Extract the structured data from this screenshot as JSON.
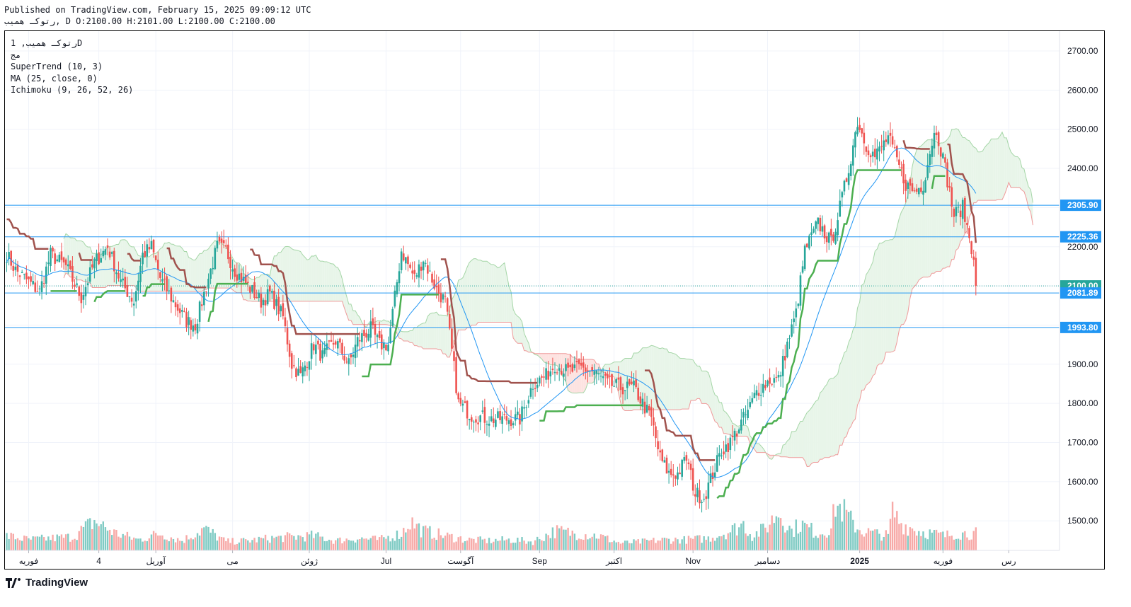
{
  "header": {
    "published": "Published on TradingView.com, February 15, 2025 09:09:12 UTC",
    "ohlc": "رتوکـ همیب, D O:2100.00 H:2101.00 L:2100.00 C:2100.00"
  },
  "legend": {
    "symbol": "رتوکـ همیب, 1D",
    "sub": "مج",
    "supertrend": "SuperTrend (10, 3)",
    "ma": "MA (25, close, 0)",
    "ichimoku": "Ichimoku (9, 26, 52, 26)"
  },
  "footer": {
    "brand": "TradingView"
  },
  "colors": {
    "up": "#26a69a",
    "down": "#ef5350",
    "supertrend_up": "#4caf50",
    "supertrend_down": "#a0524d",
    "ma": "#2196f3",
    "hline": "#2196f3",
    "cloud_bull": "#e8f5e9",
    "cloud_bear": "#fde3e1"
  },
  "chart_data": {
    "type": "candlestick",
    "y_axis": {
      "ticks": [
        2700,
        2600,
        2500,
        2400,
        2300,
        2200,
        2100,
        2000,
        1900,
        1800,
        1700,
        1600,
        1500
      ],
      "range": [
        1425,
        2775
      ]
    },
    "x_labels": [
      "فوریه",
      "4",
      "آوریل",
      "می",
      "ژوئن",
      "Jul",
      "آگوست",
      "Sep",
      "اکتبر",
      "Nov",
      "دسامبر",
      "2025",
      "فوریه",
      "رس"
    ],
    "x_label_days": [
      10,
      42,
      68,
      103,
      138,
      173,
      207,
      243,
      277,
      313,
      347,
      389,
      427,
      457
    ],
    "price_labels": [
      {
        "value": 2305.9,
        "text": "2305.90",
        "color": "#2196f3"
      },
      {
        "value": 2225.36,
        "text": "2225.36",
        "color": "#2196f3"
      },
      {
        "value": 2100.0,
        "text": "2100.00",
        "color": "#26a69a"
      },
      {
        "value": 2081.89,
        "text": "2081.89",
        "color": "#2196f3"
      },
      {
        "value": 1993.8,
        "text": "1993.80",
        "color": "#2196f3"
      }
    ],
    "horizontal_lines": [
      2305.9,
      2225.36,
      2081.89,
      1993.8
    ],
    "last_close": 2100.0,
    "close_anchors": [
      [
        0,
        2180
      ],
      [
        4,
        2140
      ],
      [
        10,
        2110
      ],
      [
        15,
        2085
      ],
      [
        20,
        2180
      ],
      [
        27,
        2150
      ],
      [
        34,
        2070
      ],
      [
        40,
        2160
      ],
      [
        46,
        2200
      ],
      [
        52,
        2110
      ],
      [
        58,
        2060
      ],
      [
        62,
        2180
      ],
      [
        66,
        2200
      ],
      [
        70,
        2120
      ],
      [
        76,
        2060
      ],
      [
        82,
        2010
      ],
      [
        86,
        2000
      ],
      [
        90,
        2080
      ],
      [
        96,
        2200
      ],
      [
        100,
        2190
      ],
      [
        104,
        2140
      ],
      [
        110,
        2100
      ],
      [
        116,
        2060
      ],
      [
        120,
        2080
      ],
      [
        126,
        2020
      ],
      [
        130,
        1900
      ],
      [
        134,
        1870
      ],
      [
        140,
        1950
      ],
      [
        144,
        1920
      ],
      [
        150,
        1960
      ],
      [
        156,
        1900
      ],
      [
        160,
        1960
      ],
      [
        166,
        1990
      ],
      [
        170,
        1950
      ],
      [
        174,
        1950
      ],
      [
        180,
        2190
      ],
      [
        186,
        2120
      ],
      [
        190,
        2170
      ],
      [
        196,
        2090
      ],
      [
        200,
        2060
      ],
      [
        204,
        1890
      ],
      [
        206,
        1800
      ],
      [
        212,
        1770
      ],
      [
        220,
        1760
      ],
      [
        228,
        1760
      ],
      [
        234,
        1760
      ],
      [
        240,
        1850
      ],
      [
        246,
        1870
      ],
      [
        250,
        1900
      ],
      [
        256,
        1880
      ],
      [
        262,
        1890
      ],
      [
        268,
        1880
      ],
      [
        274,
        1850
      ],
      [
        280,
        1840
      ],
      [
        286,
        1840
      ],
      [
        290,
        1800
      ],
      [
        294,
        1760
      ],
      [
        298,
        1660
      ],
      [
        302,
        1620
      ],
      [
        306,
        1620
      ],
      [
        310,
        1660
      ],
      [
        314,
        1570
      ],
      [
        318,
        1560
      ],
      [
        322,
        1620
      ],
      [
        326,
        1680
      ],
      [
        330,
        1700
      ],
      [
        334,
        1740
      ],
      [
        338,
        1780
      ],
      [
        342,
        1830
      ],
      [
        348,
        1860
      ],
      [
        352,
        1860
      ],
      [
        356,
        1950
      ],
      [
        360,
        2030
      ],
      [
        364,
        2190
      ],
      [
        370,
        2260
      ],
      [
        376,
        2210
      ],
      [
        380,
        2300
      ],
      [
        384,
        2400
      ],
      [
        388,
        2520
      ],
      [
        392,
        2460
      ],
      [
        396,
        2430
      ],
      [
        402,
        2480
      ],
      [
        406,
        2420
      ],
      [
        410,
        2360
      ],
      [
        414,
        2340
      ],
      [
        418,
        2360
      ],
      [
        422,
        2470
      ],
      [
        424,
        2500
      ],
      [
        428,
        2400
      ],
      [
        432,
        2280
      ],
      [
        436,
        2300
      ],
      [
        440,
        2200
      ],
      [
        442,
        2160
      ]
    ],
    "volume_anchors": [
      [
        0,
        0.3
      ],
      [
        10,
        0.22
      ],
      [
        20,
        0.25
      ],
      [
        30,
        0.28
      ],
      [
        40,
        0.6
      ],
      [
        50,
        0.35
      ],
      [
        60,
        0.22
      ],
      [
        70,
        0.35
      ],
      [
        80,
        0.2
      ],
      [
        90,
        0.45
      ],
      [
        100,
        0.18
      ],
      [
        110,
        0.2
      ],
      [
        120,
        0.25
      ],
      [
        130,
        0.28
      ],
      [
        140,
        0.3
      ],
      [
        150,
        0.2
      ],
      [
        160,
        0.25
      ],
      [
        170,
        0.22
      ],
      [
        180,
        0.35
      ],
      [
        184,
        0.6
      ],
      [
        190,
        0.4
      ],
      [
        200,
        0.3
      ],
      [
        210,
        0.22
      ],
      [
        220,
        0.2
      ],
      [
        230,
        0.22
      ],
      [
        240,
        0.18
      ],
      [
        250,
        0.4
      ],
      [
        260,
        0.35
      ],
      [
        270,
        0.3
      ],
      [
        280,
        0.15
      ],
      [
        290,
        0.18
      ],
      [
        300,
        0.22
      ],
      [
        310,
        0.22
      ],
      [
        320,
        0.25
      ],
      [
        330,
        0.4
      ],
      [
        336,
        0.55
      ],
      [
        340,
        0.3
      ],
      [
        346,
        0.45
      ],
      [
        352,
        0.8
      ],
      [
        358,
        0.4
      ],
      [
        362,
        0.55
      ],
      [
        370,
        0.35
      ],
      [
        376,
        0.45
      ],
      [
        378,
        0.95
      ],
      [
        382,
        0.8
      ],
      [
        386,
        0.55
      ],
      [
        390,
        0.4
      ],
      [
        396,
        0.35
      ],
      [
        402,
        0.3
      ],
      [
        404,
        0.8
      ],
      [
        408,
        0.55
      ],
      [
        416,
        0.4
      ],
      [
        422,
        0.35
      ],
      [
        428,
        0.3
      ],
      [
        432,
        0.35
      ],
      [
        440,
        0.35
      ]
    ],
    "volume_max_px": 200
  }
}
